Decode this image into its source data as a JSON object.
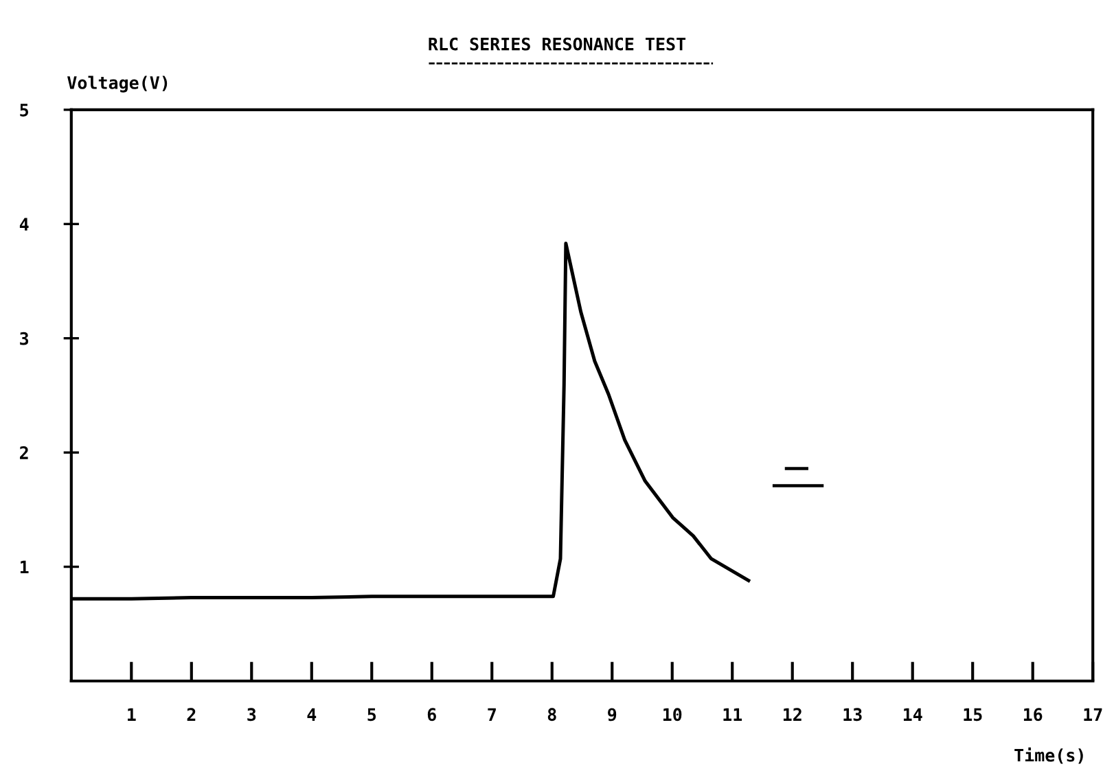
{
  "chart_data": {
    "type": "line",
    "title": "RLC SERIES RESONANCE TEST",
    "xlabel": "Time(s)",
    "ylabel": "Voltage(V)",
    "x": [
      0,
      1,
      2,
      3,
      4,
      5,
      6,
      7,
      8.02,
      8.14,
      8.2,
      8.23,
      8.48,
      8.71,
      8.94,
      9.21,
      9.55,
      10.01,
      10.35,
      10.65,
      11.27
    ],
    "series": [
      {
        "color": "#000000",
        "values": [
          0.72,
          0.72,
          0.73,
          0.73,
          0.73,
          0.74,
          0.74,
          0.74,
          0.74,
          1.07,
          2.59,
          3.83,
          3.23,
          2.8,
          2.51,
          2.11,
          1.75,
          1.43,
          1.27,
          1.07,
          0.88
        ]
      }
    ],
    "xlim": [
      0,
      17
    ],
    "ylim": [
      0,
      5
    ],
    "xticks": [
      1,
      2,
      3,
      4,
      5,
      6,
      7,
      8,
      9,
      10,
      11,
      12,
      13,
      14,
      15,
      16,
      17
    ],
    "yticks": [
      1,
      2,
      3,
      4,
      5
    ],
    "grid": false,
    "legend": false,
    "marker": "none",
    "line_style": "solid"
  }
}
